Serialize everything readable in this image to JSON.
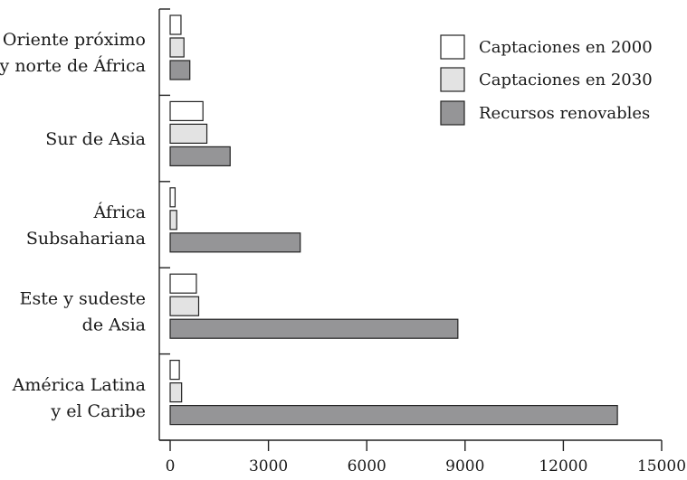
{
  "chart_data": {
    "type": "bar",
    "orientation": "horizontal",
    "categories": [
      [
        "Oriente próximo",
        "y norte de África"
      ],
      [
        "Sur de Asia"
      ],
      [
        "África",
        "Subsahariana"
      ],
      [
        "Este y sudeste",
        "de Asia"
      ],
      [
        "América Latina",
        "y el Caribe"
      ]
    ],
    "series": [
      {
        "name": "Captaciones en 2000",
        "values": [
          330,
          1000,
          150,
          800,
          280
        ],
        "color": "#ffffff"
      },
      {
        "name": "Captaciones en 2030",
        "values": [
          420,
          1120,
          200,
          870,
          350
        ],
        "color": "#e3e3e3"
      },
      {
        "name": "Recursos renovables",
        "values": [
          600,
          1830,
          3970,
          8780,
          13650
        ],
        "color": "#959597"
      }
    ],
    "xlim": [
      0,
      15000
    ],
    "xticks": [
      0,
      3000,
      6000,
      9000,
      12000,
      15000
    ],
    "xlabel": "",
    "ylabel": "",
    "title": "",
    "grid": false,
    "legend": "top-right"
  }
}
